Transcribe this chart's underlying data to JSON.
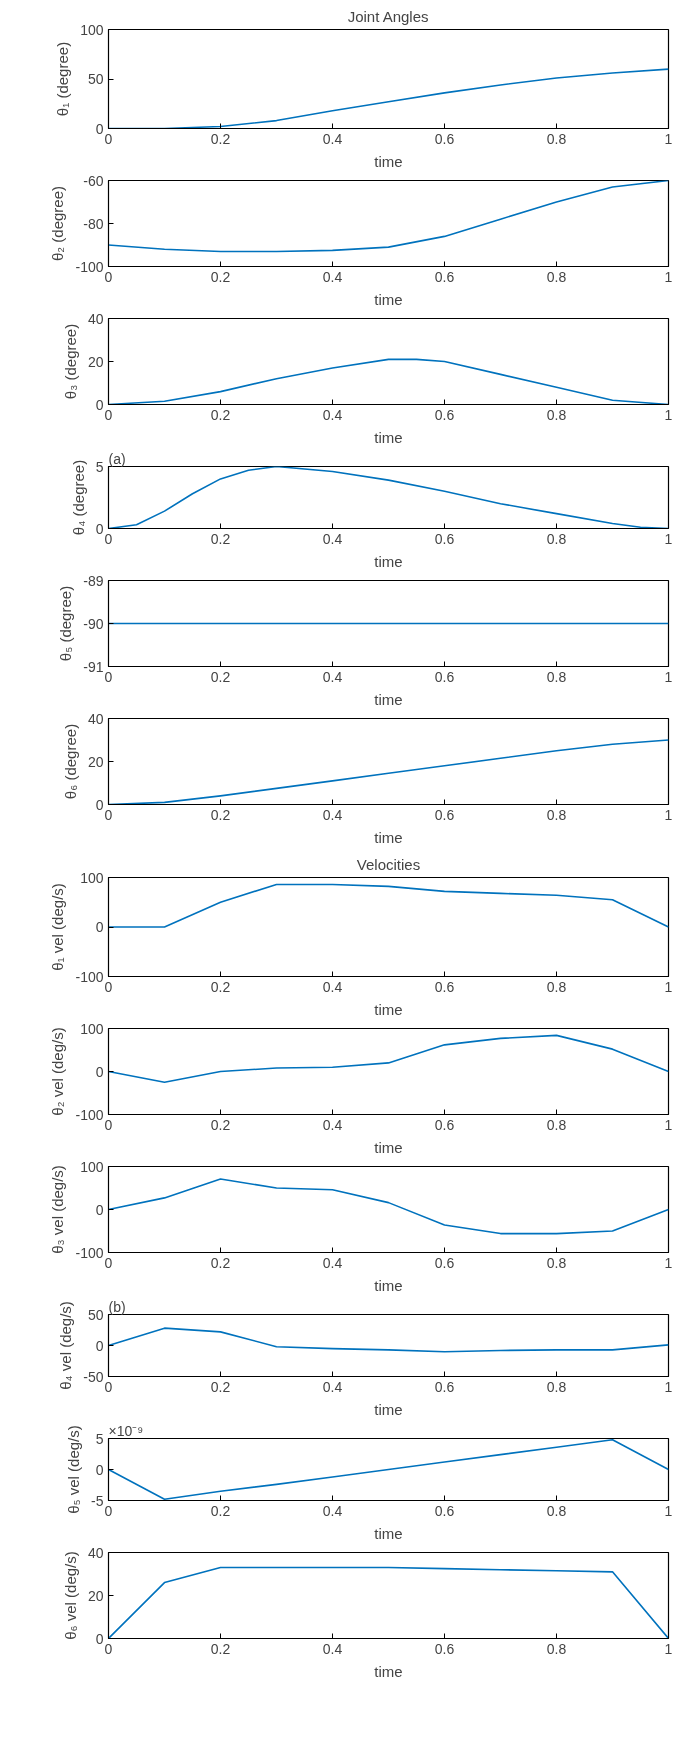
{
  "chart_data": [
    {
      "type": "line",
      "title": "Joint Angles",
      "xlabel": "time",
      "ylabel": "θ₁ (degree)",
      "xlim": [
        0,
        1
      ],
      "xticks": [
        0,
        0.2,
        0.4,
        0.6,
        0.8,
        1
      ],
      "ylim": [
        0,
        100
      ],
      "yticks": [
        0,
        50,
        100
      ],
      "grid": false,
      "x": [
        0,
        0.1,
        0.2,
        0.3,
        0.4,
        0.5,
        0.6,
        0.7,
        0.8,
        0.9,
        1
      ],
      "series": [
        {
          "color": "#0072bd",
          "values": [
            0,
            0,
            2,
            8,
            18,
            27,
            36,
            44,
            51,
            56,
            60
          ]
        }
      ]
    },
    {
      "type": "line",
      "xlabel": "time",
      "ylabel": "θ₂ (degree)",
      "xlim": [
        0,
        1
      ],
      "xticks": [
        0,
        0.2,
        0.4,
        0.6,
        0.8,
        1
      ],
      "ylim": [
        -100,
        -60
      ],
      "yticks": [
        -100,
        -80,
        -60
      ],
      "grid": false,
      "x": [
        0,
        0.1,
        0.2,
        0.3,
        0.4,
        0.5,
        0.6,
        0.7,
        0.8,
        0.9,
        1
      ],
      "series": [
        {
          "color": "#0072bd",
          "values": [
            -90,
            -92,
            -93,
            -93,
            -92.5,
            -91,
            -86,
            -78,
            -70,
            -63,
            -60
          ]
        }
      ]
    },
    {
      "type": "line",
      "xlabel": "time",
      "ylabel": "θ₃ (degree)",
      "xlim": [
        0,
        1
      ],
      "xticks": [
        0,
        0.2,
        0.4,
        0.6,
        0.8,
        1
      ],
      "ylim": [
        0,
        40
      ],
      "yticks": [
        0,
        20,
        40
      ],
      "grid": false,
      "x": [
        0,
        0.1,
        0.2,
        0.3,
        0.4,
        0.5,
        0.55,
        0.6,
        0.7,
        0.8,
        0.9,
        1
      ],
      "series": [
        {
          "color": "#0072bd",
          "values": [
            0,
            1.5,
            6,
            12,
            17,
            21,
            21,
            20,
            14,
            8,
            2,
            0
          ]
        }
      ]
    },
    {
      "type": "line",
      "xlabel": "time",
      "ylabel": "θ₄ (degree)",
      "xlim": [
        0,
        1
      ],
      "xticks": [
        0,
        0.2,
        0.4,
        0.6,
        0.8,
        1
      ],
      "ylim": [
        0,
        5
      ],
      "yticks": [
        0,
        5
      ],
      "grid": false,
      "annotations": [
        "(a)"
      ],
      "x": [
        0,
        0.05,
        0.1,
        0.15,
        0.2,
        0.25,
        0.3,
        0.4,
        0.5,
        0.6,
        0.7,
        0.8,
        0.9,
        0.95,
        1
      ],
      "series": [
        {
          "color": "#0072bd",
          "values": [
            0,
            0.3,
            1.4,
            2.8,
            4,
            4.7,
            5,
            4.6,
            3.9,
            3,
            2,
            1.2,
            0.4,
            0.1,
            0
          ]
        }
      ]
    },
    {
      "type": "line",
      "xlabel": "time",
      "ylabel": "θ₅ (degree)",
      "xlim": [
        0,
        1
      ],
      "xticks": [
        0,
        0.2,
        0.4,
        0.6,
        0.8,
        1
      ],
      "ylim": [
        -91,
        -89
      ],
      "yticks": [
        -91,
        -90,
        -89
      ],
      "grid": false,
      "x": [
        0,
        0.5,
        1
      ],
      "series": [
        {
          "color": "#0072bd",
          "values": [
            -90,
            -90,
            -90
          ]
        }
      ]
    },
    {
      "type": "line",
      "xlabel": "time",
      "ylabel": "θ₆ (degree)",
      "xlim": [
        0,
        1
      ],
      "xticks": [
        0,
        0.2,
        0.4,
        0.6,
        0.8,
        1
      ],
      "ylim": [
        0,
        40
      ],
      "yticks": [
        0,
        20,
        40
      ],
      "grid": false,
      "x": [
        0,
        0.1,
        0.2,
        0.3,
        0.4,
        0.5,
        0.6,
        0.7,
        0.8,
        0.9,
        1
      ],
      "series": [
        {
          "color": "#0072bd",
          "values": [
            0,
            1,
            4,
            7.5,
            11,
            14.5,
            18,
            21.5,
            25,
            28,
            30
          ]
        }
      ]
    },
    {
      "type": "line",
      "title": "Velocities",
      "xlabel": "time",
      "ylabel": "θ₁ vel (deg/s)",
      "xlim": [
        0,
        1
      ],
      "xticks": [
        0,
        0.2,
        0.4,
        0.6,
        0.8,
        1
      ],
      "ylim": [
        -100,
        100
      ],
      "yticks": [
        -100,
        0,
        100
      ],
      "grid": false,
      "x": [
        0,
        0.1,
        0.2,
        0.3,
        0.4,
        0.5,
        0.6,
        0.7,
        0.8,
        0.9,
        1
      ],
      "series": [
        {
          "color": "#0072bd",
          "values": [
            0,
            0,
            50,
            86,
            86,
            82,
            72,
            68,
            64,
            55,
            0
          ]
        }
      ]
    },
    {
      "type": "line",
      "xlabel": "time",
      "ylabel": "θ₂ vel (deg/s)",
      "xlim": [
        0,
        1
      ],
      "xticks": [
        0,
        0.2,
        0.4,
        0.6,
        0.8,
        1
      ],
      "ylim": [
        -100,
        100
      ],
      "yticks": [
        -100,
        0,
        100
      ],
      "grid": false,
      "x": [
        0,
        0.1,
        0.2,
        0.3,
        0.4,
        0.5,
        0.6,
        0.7,
        0.8,
        0.9,
        1
      ],
      "series": [
        {
          "color": "#0072bd",
          "values": [
            0,
            -25,
            0,
            8,
            10,
            20,
            62,
            77,
            84,
            52,
            0
          ]
        }
      ]
    },
    {
      "type": "line",
      "xlabel": "time",
      "ylabel": "θ₃ vel (deg/s)",
      "xlim": [
        0,
        1
      ],
      "xticks": [
        0,
        0.2,
        0.4,
        0.6,
        0.8,
        1
      ],
      "ylim": [
        -100,
        100
      ],
      "yticks": [
        -100,
        0,
        100
      ],
      "grid": false,
      "x": [
        0,
        0.1,
        0.2,
        0.3,
        0.4,
        0.5,
        0.6,
        0.7,
        0.8,
        0.9,
        1
      ],
      "series": [
        {
          "color": "#0072bd",
          "values": [
            0,
            27,
            71,
            50,
            46,
            16,
            -36,
            -56,
            -56,
            -50,
            0
          ]
        }
      ]
    },
    {
      "type": "line",
      "xlabel": "time",
      "ylabel": "θ₄ vel (deg/s)",
      "xlim": [
        0,
        1
      ],
      "xticks": [
        0,
        0.2,
        0.4,
        0.6,
        0.8,
        1
      ],
      "ylim": [
        -50,
        50
      ],
      "yticks": [
        -50,
        0,
        50
      ],
      "grid": false,
      "annotations": [
        "(b)"
      ],
      "x": [
        0,
        0.1,
        0.2,
        0.3,
        0.4,
        0.5,
        0.6,
        0.7,
        0.8,
        0.9,
        1
      ],
      "series": [
        {
          "color": "#0072bd",
          "values": [
            0,
            28,
            22,
            -2,
            -5,
            -7,
            -10,
            -8,
            -7,
            -7,
            1
          ]
        }
      ]
    },
    {
      "type": "line",
      "xlabel": "time",
      "ylabel": "θ₅ vel (deg/s)",
      "xlim": [
        0,
        1
      ],
      "xticks": [
        0,
        0.2,
        0.4,
        0.6,
        0.8,
        1
      ],
      "ylim": [
        -5,
        5
      ],
      "yticks": [
        -5,
        0,
        5
      ],
      "grid": false,
      "annotations": [
        "×10⁻⁹"
      ],
      "x": [
        0,
        0.1,
        0.2,
        0.3,
        0.4,
        0.5,
        0.6,
        0.7,
        0.8,
        0.9,
        1
      ],
      "series": [
        {
          "color": "#0072bd",
          "values": [
            0,
            -4.8,
            -3.5,
            -2.4,
            -1.2,
            0,
            1.2,
            2.4,
            3.6,
            4.8,
            0
          ]
        }
      ]
    },
    {
      "type": "line",
      "xlabel": "time",
      "ylabel": "θ₆ vel (deg/s)",
      "xlim": [
        0,
        1
      ],
      "xticks": [
        0,
        0.2,
        0.4,
        0.6,
        0.8,
        1
      ],
      "ylim": [
        0,
        40
      ],
      "yticks": [
        0,
        20,
        40
      ],
      "grid": false,
      "x": [
        0,
        0.1,
        0.2,
        0.3,
        0.4,
        0.5,
        0.6,
        0.7,
        0.8,
        0.9,
        1
      ],
      "series": [
        {
          "color": "#0072bd",
          "values": [
            0,
            26,
            33,
            33,
            33,
            33,
            32.5,
            32,
            31.5,
            31,
            0
          ]
        }
      ]
    }
  ]
}
